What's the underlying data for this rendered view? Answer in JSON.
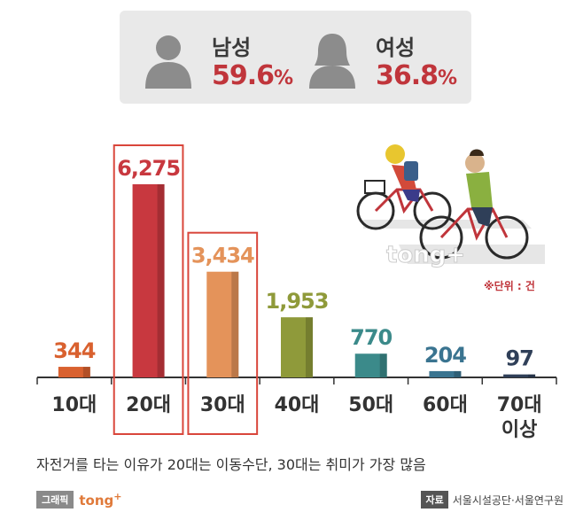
{
  "gender": {
    "male": {
      "label": "남성",
      "value": "59.6",
      "unit": "%"
    },
    "female": {
      "label": "여성",
      "value": "36.8",
      "unit": "%"
    }
  },
  "chart_data": {
    "type": "bar",
    "categories": [
      "10대",
      "20대",
      "30대",
      "40대",
      "50대",
      "60대",
      "70대 이상"
    ],
    "values": [
      344,
      6275,
      3434,
      1953,
      770,
      204,
      97
    ],
    "value_labels": [
      "344",
      "6,275",
      "3,434",
      "1,953",
      "770",
      "204",
      "97"
    ],
    "category_lines": [
      [
        "10대"
      ],
      [
        "20대"
      ],
      [
        "30대"
      ],
      [
        "40대"
      ],
      [
        "50대"
      ],
      [
        "60대"
      ],
      [
        "70대",
        "이상"
      ]
    ],
    "bar_colors": [
      "#d9612f",
      "#c8383f",
      "#e4935a",
      "#8f9a3a",
      "#3b8a8a",
      "#3a7490",
      "#2f3f58"
    ],
    "label_colors": [
      "#d9612f",
      "#c8383f",
      "#e4935a",
      "#8f9a3a",
      "#3b8a8a",
      "#3a7490",
      "#2f3f58"
    ],
    "highlighted": [
      1,
      2
    ],
    "highlight_color": "#d9463b",
    "ylim": [
      0,
      6275
    ],
    "unit_note": "※단위 : 건",
    "grid": false
  },
  "caption": "자전거를 타는 이유가 20대는 이동수단, 30대는 취미가 가장 많음",
  "footer": {
    "graphic_tag": "그래픽",
    "brand": "tong",
    "brand_plus": "+",
    "source_tag": "자료",
    "source": "서울시설공단·서울연구원"
  },
  "watermark": "tong+",
  "icons": [
    "male-silhouette-icon",
    "female-silhouette-icon",
    "cyclists-illustration"
  ]
}
